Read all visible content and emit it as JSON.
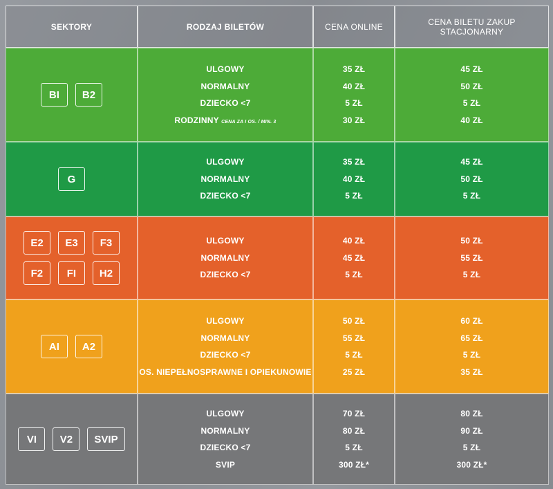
{
  "headers": {
    "sectors": "SEKTORY",
    "ticket_type": "RODZAJ BILETÓW",
    "price_online": "CENA ONLINE",
    "price_stationary": "CENA BILETU ZAKUP STACJONARNY"
  },
  "colors": {
    "green1": "#4dab38",
    "green2": "#1f9a46",
    "orange": "#e4612b",
    "amber": "#f0a11c",
    "gray": "#767779"
  },
  "groups": [
    {
      "sectors": [
        "BI",
        "B2"
      ],
      "rows": [
        {
          "type": "ULGOWY",
          "note": "",
          "online": "35 ZŁ",
          "stationary": "45 ZŁ"
        },
        {
          "type": "NORMALNY",
          "note": "",
          "online": "40 ZŁ",
          "stationary": "50 ZŁ"
        },
        {
          "type": "DZIECKO <7",
          "note": "",
          "online": "5 ZŁ",
          "stationary": "5 ZŁ"
        },
        {
          "type": "RODZINNY",
          "note": "CENA ZA I OS. / MIN. 3",
          "online": "30 ZŁ",
          "stationary": "40 ZŁ"
        }
      ]
    },
    {
      "sectors": [
        "G"
      ],
      "rows": [
        {
          "type": "ULGOWY",
          "note": "",
          "online": "35 ZŁ",
          "stationary": "45 ZŁ"
        },
        {
          "type": "NORMALNY",
          "note": "",
          "online": "40 ZŁ",
          "stationary": "50 ZŁ"
        },
        {
          "type": "DZIECKO <7",
          "note": "",
          "online": "5 ZŁ",
          "stationary": "5 ZŁ"
        }
      ]
    },
    {
      "sectors": [
        "E2",
        "E3",
        "F3",
        "F2",
        "FI",
        "H2"
      ],
      "rows": [
        {
          "type": "ULGOWY",
          "note": "",
          "online": "40 ZŁ",
          "stationary": "50 ZŁ"
        },
        {
          "type": "NORMALNY",
          "note": "",
          "online": "45 ZŁ",
          "stationary": "55 ZŁ"
        },
        {
          "type": "DZIECKO <7",
          "note": "",
          "online": "5 ZŁ",
          "stationary": "5 ZŁ"
        }
      ]
    },
    {
      "sectors": [
        "AI",
        "A2"
      ],
      "rows": [
        {
          "type": "ULGOWY",
          "note": "",
          "online": "50 ZŁ",
          "stationary": "60 ZŁ"
        },
        {
          "type": "NORMALNY",
          "note": "",
          "online": "55 ZŁ",
          "stationary": "65 ZŁ"
        },
        {
          "type": "DZIECKO <7",
          "note": "",
          "online": "5 ZŁ",
          "stationary": "5 ZŁ"
        },
        {
          "type": "OS. NIEPEŁNOSPRAWNE I OPIEKUNOWIE",
          "note": "",
          "online": "25 ZŁ",
          "stationary": "35 ZŁ"
        }
      ]
    },
    {
      "sectors": [
        "VI",
        "V2",
        "SVIP"
      ],
      "rows": [
        {
          "type": "ULGOWY",
          "note": "",
          "online": "70 ZŁ",
          "stationary": "80 ZŁ"
        },
        {
          "type": "NORMALNY",
          "note": "",
          "online": "80 ZŁ",
          "stationary": "90 ZŁ"
        },
        {
          "type": "DZIECKO <7",
          "note": "",
          "online": "5 ZŁ",
          "stationary": "5 ZŁ"
        },
        {
          "type": "SVIP",
          "note": "",
          "online": "300 ZŁ*",
          "stationary": "300 ZŁ*"
        }
      ]
    }
  ]
}
